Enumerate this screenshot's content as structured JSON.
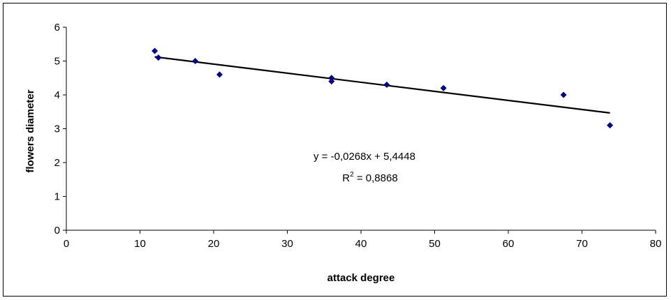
{
  "chart_data": {
    "type": "scatter",
    "title": "",
    "xlabel": "attack degree",
    "ylabel": "flowers diameter",
    "xlim": [
      0,
      80
    ],
    "ylim": [
      0,
      6
    ],
    "x_ticks": [
      "0",
      "10",
      "20",
      "30",
      "40",
      "50",
      "60",
      "70",
      "80"
    ],
    "y_ticks": [
      "0",
      "1",
      "2",
      "3",
      "4",
      "5",
      "6"
    ],
    "grid": false,
    "legend": "none",
    "marker": "diamond",
    "marker_color": "#000080",
    "trendline_color": "#000000",
    "points": [
      {
        "x": 12.0,
        "y": 5.3
      },
      {
        "x": 12.5,
        "y": 5.1
      },
      {
        "x": 17.5,
        "y": 5.0
      },
      {
        "x": 20.8,
        "y": 4.6
      },
      {
        "x": 36.0,
        "y": 4.5
      },
      {
        "x": 36.0,
        "y": 4.4
      },
      {
        "x": 43.5,
        "y": 4.3
      },
      {
        "x": 51.2,
        "y": 4.2
      },
      {
        "x": 67.5,
        "y": 4.0
      },
      {
        "x": 73.8,
        "y": 3.1
      }
    ],
    "trendline": {
      "slope": -0.0268,
      "intercept": 5.4448,
      "x_range": [
        12.0,
        73.8
      ],
      "equation_text": "y = -0,0268x + 5,4448",
      "r2_prefix": "R",
      "r2_sup": "2",
      "r2_value": " = 0,8868"
    }
  }
}
